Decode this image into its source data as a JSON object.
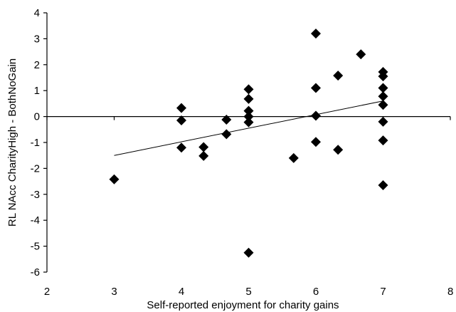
{
  "chart_data": {
    "type": "scatter",
    "title": "",
    "xlabel": "Self-reported enjoyment for charity gains",
    "ylabel": "RL NAcc CharityHigh - BothNoGain",
    "xlim": [
      2,
      8
    ],
    "ylim": [
      -6,
      4
    ],
    "x_ticks": [
      "2",
      "3",
      "4",
      "5",
      "6",
      "7",
      "8"
    ],
    "y_ticks": [
      "4",
      "3",
      "2",
      "1",
      "0",
      "-1",
      "-2",
      "-3",
      "-4",
      "-5",
      "-6"
    ],
    "grid": false,
    "legend": "none",
    "marker": "diamond",
    "marker_color": "#000000",
    "series": [
      {
        "points": [
          {
            "x": 3,
            "y": -2.42
          },
          {
            "x": 4,
            "y": 0.33
          },
          {
            "x": 4,
            "y": -0.15
          },
          {
            "x": 4,
            "y": -1.2
          },
          {
            "x": 4.33,
            "y": -1.18
          },
          {
            "x": 4.33,
            "y": -1.52
          },
          {
            "x": 4.67,
            "y": -0.12
          },
          {
            "x": 4.67,
            "y": -0.68
          },
          {
            "x": 5,
            "y": 1.05
          },
          {
            "x": 5,
            "y": 0.68
          },
          {
            "x": 5,
            "y": 0.22
          },
          {
            "x": 5,
            "y": 0.0
          },
          {
            "x": 5,
            "y": -0.22
          },
          {
            "x": 5,
            "y": -5.25
          },
          {
            "x": 5.67,
            "y": -1.6
          },
          {
            "x": 6,
            "y": 3.2
          },
          {
            "x": 6,
            "y": 1.1
          },
          {
            "x": 6,
            "y": 0.03
          },
          {
            "x": 6,
            "y": -0.98
          },
          {
            "x": 6.33,
            "y": 1.58
          },
          {
            "x": 6.33,
            "y": -1.28
          },
          {
            "x": 6.67,
            "y": 2.4
          },
          {
            "x": 7,
            "y": 1.72
          },
          {
            "x": 7,
            "y": 1.55
          },
          {
            "x": 7,
            "y": 1.1
          },
          {
            "x": 7,
            "y": 0.78
          },
          {
            "x": 7,
            "y": 0.45
          },
          {
            "x": 7,
            "y": -0.2
          },
          {
            "x": 7,
            "y": -0.92
          },
          {
            "x": 7,
            "y": -2.65
          }
        ]
      }
    ],
    "trendline": {
      "type": "linear",
      "x": [
        3,
        7
      ],
      "y": [
        -1.5,
        0.6
      ]
    }
  }
}
